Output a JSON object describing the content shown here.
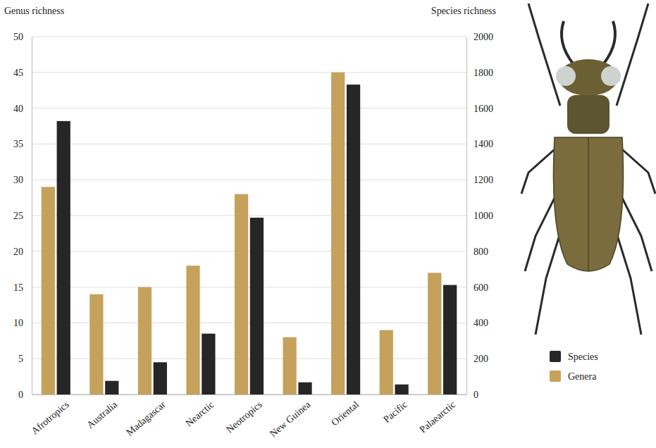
{
  "chart_data": {
    "type": "bar",
    "ylabel": "Genus richness",
    "y2label": "Species richness",
    "categories": [
      "Afrotropics",
      "Australia",
      "Madagascar",
      "Nearctic",
      "Neotropics",
      "New Guinea",
      "Oriental",
      "Pacific",
      "Palaearctic"
    ],
    "series": [
      {
        "name": "Genera",
        "color": "#c6a15b",
        "values": [
          29,
          14,
          15,
          18,
          28,
          8,
          45,
          9,
          17
        ]
      },
      {
        "name": "Species",
        "color": "#262626",
        "axis": "y2",
        "values": [
          1528,
          76,
          180,
          340,
          988,
          68,
          1732,
          56,
          612
        ]
      }
    ],
    "ylim": [
      0,
      50
    ],
    "yticks": [
      0,
      5,
      10,
      15,
      20,
      25,
      30,
      35,
      40,
      45,
      50
    ],
    "y2lim": [
      0,
      2000
    ],
    "y2ticks": [
      0,
      200,
      400,
      600,
      800,
      1000,
      1200,
      1400,
      1600,
      1800,
      2000
    ],
    "grid": true,
    "legend": "right"
  }
}
